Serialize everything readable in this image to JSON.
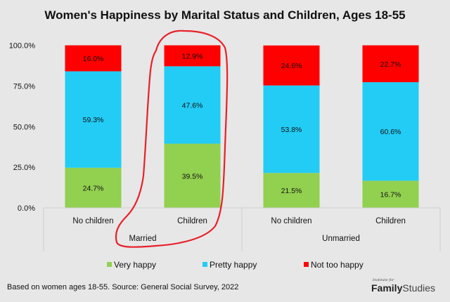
{
  "chart_data": {
    "type": "bar",
    "stacked": true,
    "title": "Women's Happiness by Marital Status and Children, Ages 18-55",
    "xlabel": "",
    "ylabel": "",
    "ylim": [
      0,
      100
    ],
    "yticks": [
      "0.0%",
      "25.0%",
      "50.0%",
      "75.0%",
      "100.0%"
    ],
    "ytick_values": [
      0,
      25,
      50,
      75,
      100
    ],
    "grid": false,
    "groups": [
      {
        "label": "Married",
        "categories": [
          "No children",
          "Children"
        ]
      },
      {
        "label": "Unmarried",
        "categories": [
          "No children",
          "Children"
        ]
      }
    ],
    "categories": [
      "No children",
      "Children",
      "No children",
      "Children"
    ],
    "series": [
      {
        "name": "Very happy",
        "color": "#92d050",
        "values": [
          24.7,
          39.5,
          21.5,
          16.7
        ],
        "labels": [
          "24.7%",
          "39.5%",
          "21.5%",
          "16.7%"
        ]
      },
      {
        "name": "Pretty happy",
        "color": "#22ccf5",
        "values": [
          59.3,
          47.6,
          53.8,
          60.6
        ],
        "labels": [
          "59.3%",
          "47.6%",
          "53.8%",
          "60.6%"
        ]
      },
      {
        "name": "Not too happy",
        "color": "#ff0000",
        "values": [
          16.0,
          12.9,
          24.6,
          22.7
        ],
        "labels": [
          "16.0%",
          "12.9%",
          "24.6%",
          "22.7%"
        ]
      }
    ],
    "legend": [
      "Very happy",
      "Pretty happy",
      "Not too happy"
    ],
    "legend_position": "bottom",
    "annotation": "Red hand-drawn circle around Married - Children bar",
    "annotation_color": "#e8202a"
  },
  "footnote": "Based on women ages 18-55. Source: General Social Survey, 2022",
  "brand": {
    "small": "Institute for",
    "bold": "Family",
    "light": "Studies"
  }
}
